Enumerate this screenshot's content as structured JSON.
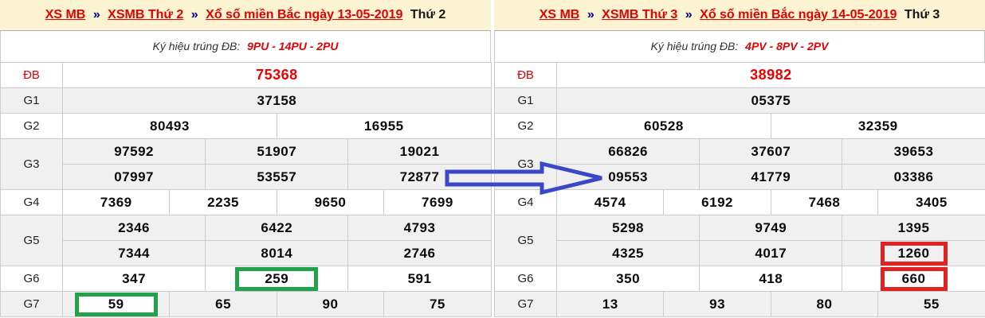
{
  "colors": {
    "header_bg": "#fbf3d1",
    "row_alt_bg": "#f0f0f0",
    "cell_border": "#cccccc",
    "link_red": "#e60000",
    "separator_navy": "#000080",
    "db_number_red": "#f00000",
    "arrow_blue": "#3c46c8",
    "green_box": "#21a24b",
    "red_box": "#e02222"
  },
  "annotations": {
    "arrow": {
      "direction": "right",
      "color": "#3c46c8",
      "points_to": "09553"
    }
  },
  "panels": [
    {
      "breadcrumb": {
        "separator": "»",
        "links": [
          "XS MB",
          "XSMB Thứ 2",
          "Xổ số miền Bắc ngày 13-05-2019"
        ],
        "suffix": "Thứ 2"
      },
      "symbol": {
        "label": "Ký hiệu trúng ĐB:",
        "value": "9PU - 14PU - 2PU"
      },
      "rows": [
        {
          "label": "ĐB",
          "label_red": true,
          "cells": [
            {
              "t": "75368",
              "span": 12,
              "cls": "db"
            }
          ]
        },
        {
          "label": "G1",
          "cells": [
            {
              "t": "37158",
              "span": 12
            }
          ]
        },
        {
          "label": "G2",
          "cells": [
            {
              "t": "80493",
              "span": 6
            },
            {
              "t": "16955",
              "span": 6
            }
          ]
        },
        {
          "label": "G3",
          "rowspan": 2,
          "cells": [
            {
              "t": "97592",
              "span": 4
            },
            {
              "t": "51907",
              "span": 4
            },
            {
              "t": "19021",
              "span": 4
            }
          ]
        },
        {
          "cells": [
            {
              "t": "07997",
              "span": 4
            },
            {
              "t": "53557",
              "span": 4
            },
            {
              "t": "72877",
              "span": 4
            }
          ]
        },
        {
          "label": "G4",
          "cells": [
            {
              "t": "7369",
              "span": 3
            },
            {
              "t": "2235",
              "span": 3
            },
            {
              "t": "9650",
              "span": 3
            },
            {
              "t": "7699",
              "span": 3
            }
          ]
        },
        {
          "label": "G5",
          "rowspan": 2,
          "cells": [
            {
              "t": "2346",
              "span": 4
            },
            {
              "t": "6422",
              "span": 4
            },
            {
              "t": "4793",
              "span": 4
            }
          ]
        },
        {
          "cells": [
            {
              "t": "7344",
              "span": 4
            },
            {
              "t": "8014",
              "span": 4
            },
            {
              "t": "2746",
              "span": 4
            }
          ]
        },
        {
          "label": "G6",
          "cells": [
            {
              "t": "347",
              "span": 4
            },
            {
              "t": "259",
              "span": 4,
              "hl": "green"
            },
            {
              "t": "591",
              "span": 4
            }
          ]
        },
        {
          "label": "G7",
          "cells": [
            {
              "t": "59",
              "span": 3,
              "hl": "green"
            },
            {
              "t": "65",
              "span": 3
            },
            {
              "t": "90",
              "span": 3
            },
            {
              "t": "75",
              "span": 3
            }
          ]
        }
      ]
    },
    {
      "breadcrumb": {
        "separator": "»",
        "links": [
          "XS MB",
          "XSMB Thứ 3",
          "Xổ số miền Bắc ngày 14-05-2019"
        ],
        "suffix": "Thứ 3"
      },
      "symbol": {
        "label": "Ký hiệu trúng ĐB:",
        "value": "4PV - 8PV - 2PV"
      },
      "rows": [
        {
          "label": "ĐB",
          "label_red": true,
          "cells": [
            {
              "t": "38982",
              "span": 12,
              "cls": "db"
            }
          ]
        },
        {
          "label": "G1",
          "cells": [
            {
              "t": "05375",
              "span": 12
            }
          ]
        },
        {
          "label": "G2",
          "cells": [
            {
              "t": "60528",
              "span": 6
            },
            {
              "t": "32359",
              "span": 6
            }
          ]
        },
        {
          "label": "G3",
          "rowspan": 2,
          "cells": [
            {
              "t": "66826",
              "span": 4
            },
            {
              "t": "37607",
              "span": 4
            },
            {
              "t": "39653",
              "span": 4
            }
          ]
        },
        {
          "cells": [
            {
              "t": "09553",
              "span": 4
            },
            {
              "t": "41779",
              "span": 4
            },
            {
              "t": "03386",
              "span": 4
            }
          ]
        },
        {
          "label": "G4",
          "cells": [
            {
              "t": "4574",
              "span": 3
            },
            {
              "t": "6192",
              "span": 3
            },
            {
              "t": "7468",
              "span": 3
            },
            {
              "t": "3405",
              "span": 3
            }
          ]
        },
        {
          "label": "G5",
          "rowspan": 2,
          "cells": [
            {
              "t": "5298",
              "span": 4
            },
            {
              "t": "9749",
              "span": 4
            },
            {
              "t": "1395",
              "span": 4
            }
          ]
        },
        {
          "cells": [
            {
              "t": "4325",
              "span": 4
            },
            {
              "t": "4017",
              "span": 4
            },
            {
              "t": "1260",
              "span": 4,
              "hl": "red"
            }
          ]
        },
        {
          "label": "G6",
          "cells": [
            {
              "t": "350",
              "span": 4
            },
            {
              "t": "418",
              "span": 4
            },
            {
              "t": "660",
              "span": 4,
              "hl": "red"
            }
          ]
        },
        {
          "label": "G7",
          "cells": [
            {
              "t": "13",
              "span": 3
            },
            {
              "t": "93",
              "span": 3
            },
            {
              "t": "80",
              "span": 3
            },
            {
              "t": "55",
              "span": 3
            }
          ]
        }
      ]
    }
  ]
}
